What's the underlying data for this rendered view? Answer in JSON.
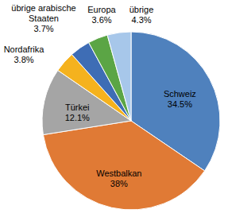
{
  "chart_data": {
    "type": "pie",
    "categories": [
      "Schweiz",
      "Westbalkan",
      "Türkei",
      "Nordafrika",
      "übrige arabische Staaten",
      "Europa",
      "übrige"
    ],
    "values": [
      34.5,
      38,
      12.1,
      3.8,
      3.7,
      3.6,
      4.3
    ],
    "value_labels": [
      "34.5%",
      "38%",
      "12.1%",
      "3.8%",
      "3.7%",
      "3.6%",
      "4.3%"
    ],
    "colors": [
      "#4F81BD",
      "#E07A35",
      "#A5A5A5",
      "#F5B21E",
      "#3E6DB5",
      "#5BA545",
      "#A7C7EA"
    ],
    "data_labels": true
  }
}
